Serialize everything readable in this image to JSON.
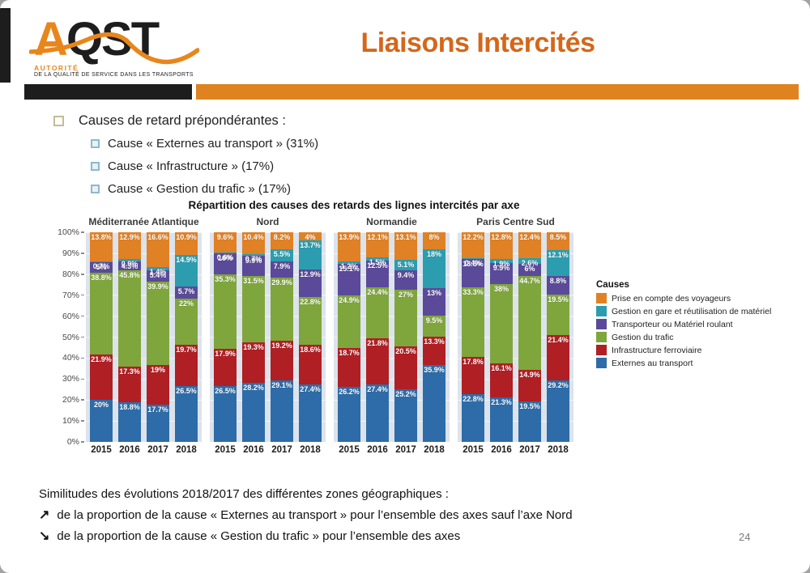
{
  "slide": {
    "logo": {
      "acronym_a": "A",
      "acronym_rest": "QST",
      "authority": "AUTORITÉ",
      "tagline": "DE LA QUALITÉ DE SERVICE DANS LES TRANSPORTS"
    },
    "header": {
      "title": "Liaisons Intercités"
    },
    "colors": {
      "accent_orange": "#df8220",
      "accent_black": "#1d1d1d",
      "title_orange": "#d4671c"
    },
    "bullets": {
      "level1": "Causes de retard prépondérantes :",
      "level2": [
        "Cause « Externes au transport » (31%)",
        "Cause « Infrastructure » (17%)",
        "Cause « Gestion du trafic » (17%)"
      ]
    },
    "footer": {
      "intro": "Similitudes des évolutions 2018/2017 des différentes zones géographiques :",
      "items": [
        {
          "arrow": "↗",
          "text": "de la proportion de la cause « Externes au transport » pour l’ensemble des axes sauf l’axe Nord"
        },
        {
          "arrow": "↘",
          "text": "de la proportion de la cause « Gestion du trafic » pour l’ensemble des axes"
        }
      ]
    },
    "page_number": "24"
  },
  "chart_data": {
    "type": "bar",
    "subtype": "stacked-100-percent",
    "title": "Répartition des causes des retards des lignes intercités par axe",
    "xlabel": "",
    "ylabel": "",
    "ylim": [
      0,
      100
    ],
    "grid": true,
    "y_ticks": [
      "100%",
      "90%",
      "80%",
      "70%",
      "60%",
      "50%",
      "40%",
      "30%",
      "20%",
      "10%",
      "0%"
    ],
    "years": [
      "2015",
      "2016",
      "2017",
      "2018"
    ],
    "legend_title": "Causes",
    "legend_position": "right",
    "legend_order_top_to_bottom": [
      "Prise en compte des voyageurs",
      "Gestion en gare et réutilisation de matériel",
      "Transporteur ou Matériel roulant",
      "Gestion du trafic",
      "Infrastructure ferroviaire",
      "Externes au transport"
    ],
    "series_bottom_to_top": [
      "Externes au transport",
      "Infrastructure ferroviaire",
      "Gestion du trafic",
      "Transporteur ou Matériel roulant",
      "Gestion en gare et réutilisation de matériel",
      "Prise en compte des voyageurs"
    ],
    "colors": {
      "Externes au transport": "#2d6ca8",
      "Infrastructure ferroviaire": "#b01f24",
      "Gestion du trafic": "#7fa63c",
      "Transporteur ou Matériel roulant": "#5a4a99",
      "Gestion en gare et réutilisation de matériel": "#2b9daf",
      "Prise en compte des voyageurs": "#e08125"
    },
    "groups": [
      {
        "name": "Méditerranée Atlantique",
        "bars": [
          {
            "year": "2015",
            "values": [
              20,
              21.9,
              38.8,
              5,
              0.7,
              13.8
            ]
          },
          {
            "year": "2016",
            "values": [
              18.8,
              17.3,
              45.8,
              4.3,
              0.9,
              12.9
            ]
          },
          {
            "year": "2017",
            "values": [
              17.7,
              19,
              39.9,
              5.4,
              1.4,
              16.6
            ]
          },
          {
            "year": "2018",
            "values": [
              26.5,
              19.7,
              22,
              5.7,
              14.9,
              10.9
            ]
          }
        ]
      },
      {
        "name": "Nord",
        "bars": [
          {
            "year": "2015",
            "values": [
              26.5,
              17.9,
              35.3,
              10,
              0.6,
              9.6
            ]
          },
          {
            "year": "2016",
            "values": [
              28.2,
              19.3,
              31.5,
              9.9,
              0.7,
              10.4
            ]
          },
          {
            "year": "2017",
            "values": [
              29.1,
              19.2,
              29.9,
              7.9,
              5.5,
              8.2
            ]
          },
          {
            "year": "2018",
            "values": [
              27.4,
              18.6,
              22.8,
              12.9,
              13.7,
              4
            ]
          }
        ]
      },
      {
        "name": "Normandie",
        "bars": [
          {
            "year": "2015",
            "values": [
              26.2,
              18.7,
              24.9,
              15.1,
              1.2,
              13.9
            ]
          },
          {
            "year": "2016",
            "values": [
              27.4,
              21.8,
              24.4,
              12.5,
              1.5,
              12.1
            ]
          },
          {
            "year": "2017",
            "values": [
              25.2,
              20.5,
              27,
              9.4,
              5.1,
              13.1
            ]
          },
          {
            "year": "2018",
            "values": [
              35.9,
              13.3,
              9.5,
              13,
              18,
              8
            ]
          }
        ]
      },
      {
        "name": "Paris Centre Sud",
        "bars": [
          {
            "year": "2015",
            "values": [
              22.8,
              17.8,
              33.3,
              13.5,
              0.4,
              12.2
            ]
          },
          {
            "year": "2016",
            "values": [
              21.3,
              16.1,
              38,
              9.9,
              1.9,
              12.8
            ]
          },
          {
            "year": "2017",
            "values": [
              19.5,
              14.9,
              44.7,
              6,
              2.6,
              12.4
            ]
          },
          {
            "year": "2018",
            "values": [
              29.2,
              21.4,
              19.5,
              8.8,
              12.1,
              8.5
            ]
          }
        ]
      }
    ]
  }
}
